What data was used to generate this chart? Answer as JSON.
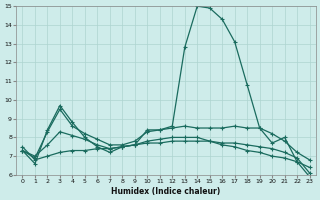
{
  "xlabel": "Humidex (Indice chaleur)",
  "bg_color": "#ceecea",
  "grid_color": "#aed4d0",
  "line_color": "#1a6b5e",
  "xlim": [
    -0.5,
    23.5
  ],
  "ylim": [
    6,
    15
  ],
  "xticks": [
    0,
    1,
    2,
    3,
    4,
    5,
    6,
    7,
    8,
    9,
    10,
    11,
    12,
    13,
    14,
    15,
    16,
    17,
    18,
    19,
    20,
    21,
    22,
    23
  ],
  "yticks": [
    6,
    7,
    8,
    9,
    10,
    11,
    12,
    13,
    14,
    15
  ],
  "line1_y": [
    7.3,
    6.6,
    8.4,
    9.7,
    8.8,
    8.0,
    7.5,
    7.2,
    7.5,
    7.6,
    8.4,
    8.4,
    8.6,
    12.8,
    15.0,
    14.9,
    14.3,
    13.1,
    10.8,
    8.5,
    7.7,
    8.0,
    6.7,
    5.9
  ],
  "line2_y": [
    7.3,
    6.9,
    8.3,
    9.5,
    8.6,
    8.2,
    7.9,
    7.6,
    7.6,
    7.8,
    8.3,
    8.4,
    8.5,
    8.6,
    8.5,
    8.5,
    8.5,
    8.6,
    8.5,
    8.5,
    8.2,
    7.8,
    7.2,
    6.8
  ],
  "line3_y": [
    7.3,
    7.0,
    7.6,
    8.3,
    8.1,
    7.9,
    7.6,
    7.4,
    7.5,
    7.6,
    7.8,
    7.9,
    8.0,
    8.0,
    8.0,
    7.8,
    7.6,
    7.5,
    7.3,
    7.2,
    7.0,
    6.9,
    6.7,
    6.4
  ],
  "line4_y": [
    7.5,
    6.8,
    7.0,
    7.2,
    7.3,
    7.3,
    7.4,
    7.4,
    7.5,
    7.6,
    7.7,
    7.7,
    7.8,
    7.8,
    7.8,
    7.8,
    7.7,
    7.7,
    7.6,
    7.5,
    7.4,
    7.2,
    6.9,
    6.1
  ]
}
